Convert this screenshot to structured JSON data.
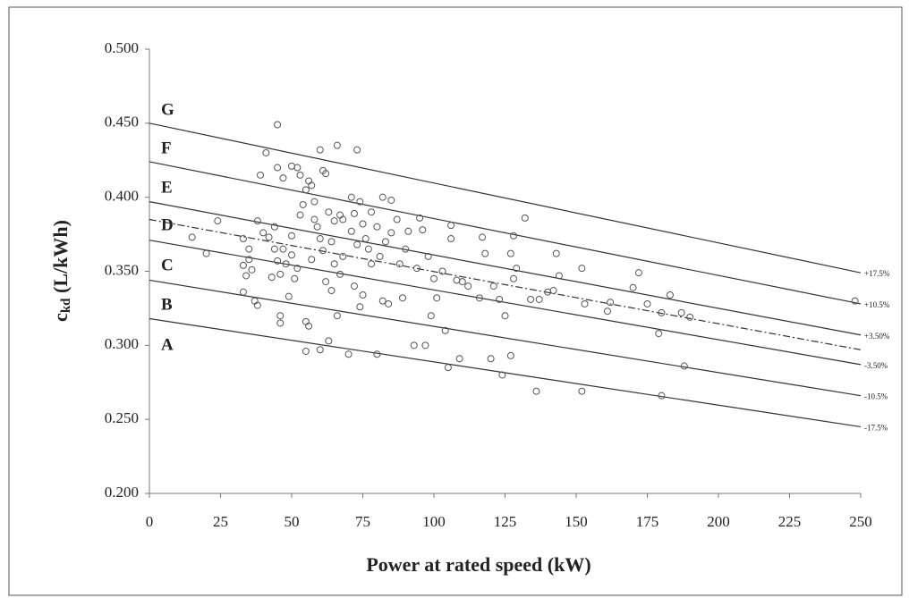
{
  "chart_data": {
    "type": "scatter",
    "x_label": "Power at rated speed (kW)",
    "y_label": {
      "main": "c",
      "sub": "kd",
      "unit": " (L/kWh)"
    },
    "xlim": [
      0,
      250
    ],
    "ylim": [
      0.2,
      0.5
    ],
    "xticks": [
      0,
      25,
      50,
      75,
      100,
      125,
      150,
      175,
      200,
      225,
      250
    ],
    "yticks": [
      {
        "value": 0.2,
        "label": "0.200"
      },
      {
        "value": 0.25,
        "label": "0.250"
      },
      {
        "value": 0.3,
        "label": "0.300"
      },
      {
        "value": 0.35,
        "label": "0.350"
      },
      {
        "value": 0.4,
        "label": "0.400"
      },
      {
        "value": 0.45,
        "label": "0.450"
      },
      {
        "value": 0.5,
        "label": "0.500"
      }
    ],
    "grid": false,
    "region_labels": [
      "G",
      "F",
      "E",
      "D",
      "C",
      "B",
      "A"
    ],
    "points": {
      "color": "#555555",
      "x": [
        15,
        20,
        24,
        33,
        33,
        33,
        34,
        35,
        35,
        36,
        37,
        38,
        38,
        39,
        40,
        41,
        42,
        43,
        44,
        44,
        45,
        45,
        45,
        46,
        46,
        46,
        47,
        47,
        48,
        49,
        50,
        50,
        50,
        51,
        52,
        52,
        53,
        53,
        54,
        55,
        55,
        55,
        56,
        56,
        57,
        57,
        58,
        58,
        59,
        60,
        60,
        60,
        61,
        61,
        62,
        62,
        63,
        63,
        64,
        64,
        65,
        65,
        66,
        66,
        67,
        67,
        68,
        68,
        70,
        71,
        71,
        72,
        72,
        73,
        73,
        74,
        74,
        75,
        75,
        76,
        77,
        78,
        78,
        80,
        80,
        81,
        82,
        82,
        83,
        84,
        85,
        85,
        87,
        88,
        89,
        90,
        91,
        93,
        94,
        95,
        96,
        97,
        98,
        99,
        100,
        101,
        103,
        104,
        105,
        106,
        106,
        108,
        109,
        110,
        112,
        116,
        117,
        118,
        120,
        121,
        123,
        124,
        125,
        127,
        127,
        128,
        128,
        129,
        132,
        134,
        136,
        137,
        140,
        142,
        143,
        144,
        152,
        152,
        153,
        161,
        162,
        170,
        172,
        175,
        179,
        180,
        180,
        183,
        187,
        188,
        190,
        248
      ],
      "values": [
        0.373,
        0.362,
        0.384,
        0.372,
        0.354,
        0.336,
        0.347,
        0.365,
        0.358,
        0.351,
        0.33,
        0.327,
        0.384,
        0.415,
        0.376,
        0.43,
        0.373,
        0.346,
        0.38,
        0.365,
        0.42,
        0.449,
        0.357,
        0.32,
        0.315,
        0.348,
        0.413,
        0.365,
        0.355,
        0.333,
        0.421,
        0.374,
        0.361,
        0.345,
        0.42,
        0.352,
        0.415,
        0.388,
        0.395,
        0.405,
        0.296,
        0.316,
        0.411,
        0.313,
        0.408,
        0.358,
        0.397,
        0.385,
        0.38,
        0.432,
        0.372,
        0.297,
        0.418,
        0.364,
        0.416,
        0.343,
        0.39,
        0.303,
        0.37,
        0.337,
        0.384,
        0.355,
        0.435,
        0.32,
        0.388,
        0.348,
        0.385,
        0.36,
        0.294,
        0.4,
        0.377,
        0.389,
        0.34,
        0.432,
        0.368,
        0.397,
        0.326,
        0.382,
        0.334,
        0.372,
        0.365,
        0.39,
        0.355,
        0.294,
        0.38,
        0.36,
        0.4,
        0.33,
        0.37,
        0.328,
        0.398,
        0.376,
        0.385,
        0.355,
        0.332,
        0.365,
        0.377,
        0.3,
        0.352,
        0.386,
        0.378,
        0.3,
        0.36,
        0.32,
        0.345,
        0.332,
        0.35,
        0.31,
        0.285,
        0.372,
        0.381,
        0.344,
        0.291,
        0.343,
        0.34,
        0.332,
        0.373,
        0.362,
        0.291,
        0.34,
        0.331,
        0.28,
        0.32,
        0.293,
        0.362,
        0.374,
        0.345,
        0.352,
        0.386,
        0.331,
        0.269,
        0.331,
        0.336,
        0.337,
        0.362,
        0.347,
        0.269,
        0.352,
        0.328,
        0.323,
        0.329,
        0.339,
        0.349,
        0.328,
        0.308,
        0.266,
        0.322,
        0.334,
        0.322,
        0.286,
        0.319,
        0.33
      ]
    },
    "lines": [
      {
        "name": "+17.5%",
        "color": "#333333",
        "dashed": false,
        "x": [
          0,
          250
        ],
        "values": [
          0.45,
          0.349
        ]
      },
      {
        "name": "+10.5%",
        "color": "#333333",
        "dashed": false,
        "x": [
          0,
          250
        ],
        "values": [
          0.424,
          0.328
        ]
      },
      {
        "name": "+3.50%",
        "color": "#333333",
        "dashed": false,
        "x": [
          0,
          250
        ],
        "values": [
          0.397,
          0.307
        ]
      },
      {
        "color": "#333333",
        "dashed": true,
        "x": [
          0,
          250
        ],
        "values": [
          0.385,
          0.297
        ]
      },
      {
        "name": "-3.50%",
        "color": "#333333",
        "dashed": false,
        "x": [
          0,
          250
        ],
        "values": [
          0.371,
          0.287
        ]
      },
      {
        "name": "-10.5%",
        "color": "#333333",
        "dashed": false,
        "x": [
          0,
          250
        ],
        "values": [
          0.344,
          0.266
        ]
      },
      {
        "name": "-17.5%",
        "color": "#333333",
        "dashed": false,
        "x": [
          0,
          250
        ],
        "values": [
          0.318,
          0.245
        ]
      }
    ]
  }
}
